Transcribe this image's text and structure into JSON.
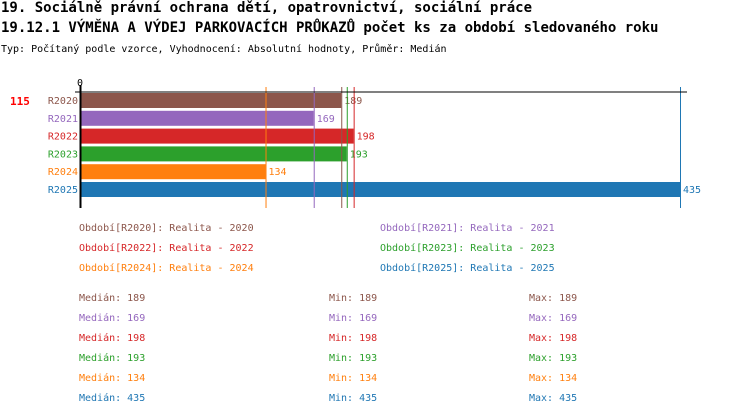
{
  "header": {
    "title": "19. Sociálně právní ochrana dětí, opatrovnictví, sociální práce",
    "subtitle": "19.12.1 VÝMĚNA A VÝDEJ PARKOVACÍCH PRŮKAZŮ počet ks za období sledovaného roku",
    "info": "Typ: Počítaný podle vzorce, Vyhodnocení: Absolutní hodnoty, Průměr: Medián"
  },
  "chart_data": {
    "type": "bar",
    "orientation": "horizontal",
    "indicator_label": "115",
    "axis_zero_label": "0",
    "categories": [
      "R2020",
      "R2021",
      "R2022",
      "R2023",
      "R2024",
      "R2025"
    ],
    "values": [
      189,
      169,
      198,
      193,
      134,
      435
    ],
    "colors": [
      "#8c564b",
      "#9467bd",
      "#d62728",
      "#2ca02c",
      "#ff7f0e",
      "#1f77b4"
    ],
    "xlim": [
      0,
      435
    ],
    "legend": [
      "Období[R2020]: Realita - 2020",
      "Období[R2021]: Realita - 2021",
      "Období[R2022]: Realita - 2022",
      "Období[R2023]: Realita - 2023",
      "Období[R2024]: Realita - 2024",
      "Období[R2025]: Realita - 2025"
    ],
    "stats": [
      {
        "median": "Medián: 189",
        "min": "Min: 189",
        "max": "Max: 189"
      },
      {
        "median": "Medián: 169",
        "min": "Min: 169",
        "max": "Max: 169"
      },
      {
        "median": "Medián: 198",
        "min": "Min: 198",
        "max": "Max: 198"
      },
      {
        "median": "Medián: 193",
        "min": "Min: 193",
        "max": "Max: 193"
      },
      {
        "median": "Medián: 134",
        "min": "Min: 134",
        "max": "Max: 134"
      },
      {
        "median": "Medián: 435",
        "min": "Min: 435",
        "max": "Max: 435"
      }
    ]
  }
}
